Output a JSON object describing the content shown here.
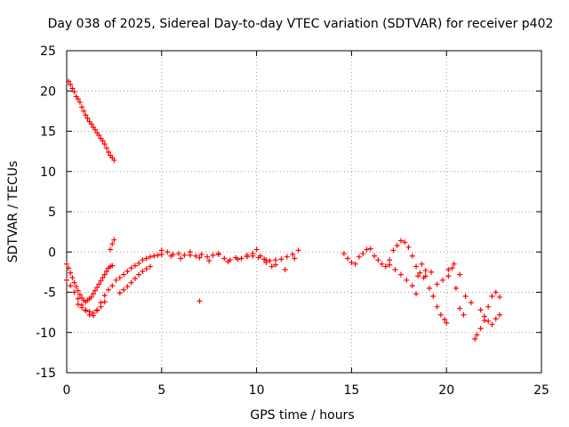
{
  "chart_data": {
    "type": "scatter",
    "title": "Day 038 of 2025, Sidereal Day-to-day VTEC variation (SDTVAR) for receiver p402",
    "xlabel": "GPS time / hours",
    "ylabel": "SDTVAR / TECUs",
    "xlim": [
      0,
      25
    ],
    "ylim": [
      -15,
      25
    ],
    "xticks": [
      0,
      5,
      10,
      15,
      20,
      25
    ],
    "yticks": [
      -15,
      -10,
      -5,
      0,
      5,
      10,
      15,
      20,
      25
    ],
    "grid": true,
    "marker": "+",
    "color": "#ff0000",
    "series": [
      {
        "name": "SDTVAR",
        "x": [
          0.1,
          0.2,
          0.3,
          0.4,
          0.5,
          0.6,
          0.7,
          0.8,
          0.9,
          1.0,
          1.1,
          1.2,
          1.3,
          1.4,
          1.5,
          1.6,
          1.7,
          1.8,
          1.9,
          2.0,
          2.1,
          2.2,
          2.3,
          2.4,
          2.5,
          2.3,
          2.4,
          2.5,
          0.0,
          0.1,
          0.2,
          0.3,
          0.4,
          0.5,
          0.6,
          0.7,
          0.8,
          0.9,
          1.0,
          1.1,
          1.2,
          1.3,
          1.4,
          1.5,
          1.6,
          1.7,
          1.8,
          1.9,
          2.0,
          2.1,
          2.2,
          2.3,
          2.4,
          0.0,
          0.2,
          0.4,
          0.6,
          0.8,
          1.0,
          1.2,
          1.4,
          1.6,
          1.8,
          2.0,
          2.2,
          2.4,
          0.6,
          0.8,
          1.0,
          1.2,
          1.4,
          1.6,
          1.8,
          2.0,
          2.6,
          2.8,
          3.0,
          3.2,
          3.4,
          3.6,
          3.8,
          4.0,
          4.2,
          4.4,
          4.6,
          4.8,
          5.0,
          2.8,
          3.0,
          3.2,
          3.4,
          3.6,
          3.8,
          4.0,
          4.2,
          4.4,
          5.0,
          5.3,
          5.6,
          5.9,
          6.2,
          6.5,
          6.8,
          7.1,
          7.4,
          7.7,
          8.0,
          8.3,
          8.6,
          8.9,
          9.2,
          9.5,
          9.8,
          10.1,
          10.4,
          10.7,
          11.0,
          11.3,
          11.6,
          11.9,
          12.2,
          5.5,
          6.0,
          6.5,
          7.0,
          7.5,
          8.0,
          8.5,
          9.0,
          9.5,
          10.0,
          10.5,
          11.0,
          11.5,
          12.0,
          7.0,
          9.8,
          10.2,
          10.5,
          10.8,
          14.6,
          14.8,
          15.0,
          15.2,
          15.4,
          15.6,
          15.8,
          16.0,
          16.2,
          16.4,
          16.6,
          16.8,
          17.0,
          17.2,
          17.4,
          17.6,
          17.8,
          18.0,
          18.2,
          18.4,
          18.6,
          18.8,
          17.0,
          17.3,
          17.6,
          17.9,
          18.2,
          18.5,
          18.7,
          18.9,
          18.4,
          18.9,
          19.1,
          19.3,
          19.5,
          19.7,
          19.9,
          20.0,
          20.1,
          20.3,
          20.5,
          20.7,
          20.9,
          19.2,
          19.5,
          19.8,
          20.1,
          20.4,
          20.7,
          21.0,
          21.3,
          21.5,
          21.6,
          21.8,
          22.0,
          22.2,
          22.4,
          22.6,
          22.8,
          21.8,
          22.0,
          22.2,
          22.4,
          22.6,
          22.8
        ],
        "y": [
          21.2,
          20.8,
          20.3,
          19.9,
          19.3,
          19.0,
          18.6,
          18.0,
          17.5,
          17.0,
          16.6,
          16.2,
          15.9,
          15.5,
          15.2,
          14.8,
          14.5,
          14.1,
          13.8,
          13.4,
          12.9,
          12.4,
          12.0,
          11.7,
          11.4,
          0.3,
          1.0,
          1.5,
          -1.5,
          -2.0,
          -2.6,
          -3.2,
          -3.8,
          -4.3,
          -4.8,
          -5.3,
          -5.7,
          -6.0,
          -6.2,
          -6.0,
          -5.8,
          -5.6,
          -5.2,
          -4.8,
          -4.4,
          -4.0,
          -3.6,
          -3.2,
          -2.8,
          -2.4,
          -2.0,
          -1.8,
          -1.7,
          -3.5,
          -4.2,
          -5.0,
          -5.8,
          -6.6,
          -7.3,
          -7.8,
          -7.9,
          -7.2,
          -6.3,
          -5.4,
          -4.7,
          -4.2,
          -6.5,
          -6.9,
          -7.2,
          -7.4,
          -7.6,
          -7.3,
          -6.8,
          -6.2,
          -3.5,
          -3.2,
          -2.8,
          -2.4,
          -2.0,
          -1.7,
          -1.4,
          -1.0,
          -0.8,
          -0.6,
          -0.5,
          -0.4,
          -0.3,
          -5.1,
          -4.7,
          -4.3,
          -3.8,
          -3.3,
          -2.8,
          -2.4,
          -2.1,
          -1.8,
          0.2,
          0.0,
          -0.3,
          -0.2,
          -0.4,
          0.0,
          -0.5,
          -0.3,
          -0.6,
          -0.4,
          -0.2,
          -0.8,
          -1.0,
          -0.7,
          -0.8,
          -0.6,
          -0.5,
          -0.7,
          -0.9,
          -1.1,
          -1.0,
          -0.9,
          -0.6,
          -0.3,
          0.2,
          -0.5,
          -0.8,
          -0.4,
          -0.7,
          -1.1,
          -0.3,
          -1.2,
          -0.9,
          -0.4,
          0.3,
          -1.0,
          -1.6,
          -2.2,
          -0.8,
          -6.1,
          -0.2,
          -0.5,
          -1.3,
          -1.8,
          -0.2,
          -0.8,
          -1.3,
          -1.5,
          -0.6,
          -0.2,
          0.3,
          0.4,
          -0.5,
          -1.0,
          -1.5,
          -1.8,
          -1.0,
          0.2,
          0.8,
          1.4,
          1.2,
          0.6,
          -0.5,
          -1.8,
          -2.6,
          -3.2,
          -1.6,
          -2.2,
          -2.8,
          -3.5,
          -4.2,
          -3.0,
          -1.5,
          -2.3,
          -5.2,
          -3.0,
          -4.5,
          -5.5,
          -6.8,
          -7.8,
          -8.4,
          -8.8,
          -3.0,
          -2.0,
          -4.5,
          -7.0,
          -7.8,
          -2.5,
          -4.0,
          -3.5,
          -2.2,
          -1.5,
          -2.8,
          -5.5,
          -6.3,
          -10.8,
          -10.3,
          -9.5,
          -8.5,
          -6.8,
          -5.5,
          -5.0,
          -5.6,
          -7.2,
          -8.0,
          -8.6,
          -9.0,
          -8.3,
          -7.8
        ]
      }
    ]
  }
}
